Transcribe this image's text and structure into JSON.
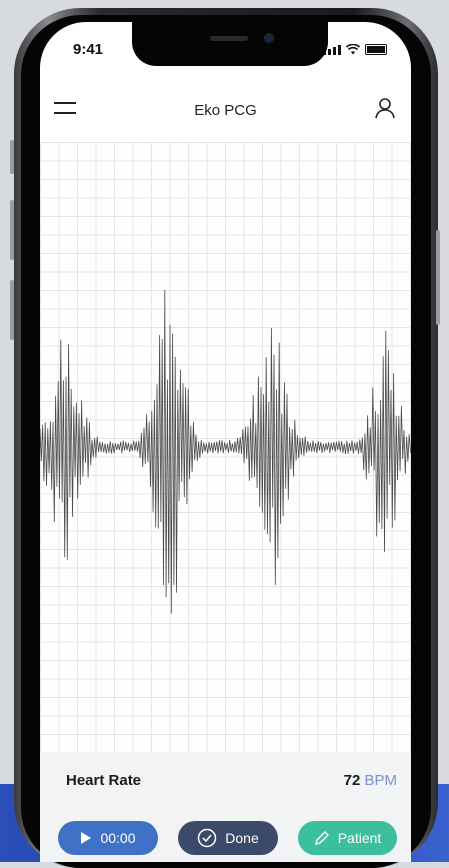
{
  "status_bar": {
    "time": "9:41"
  },
  "header": {
    "title": "Eko PCG"
  },
  "heart_rate": {
    "label": "Heart Rate",
    "value": "72",
    "unit": "BPM"
  },
  "buttons": {
    "play_label": "00:00",
    "done_label": "Done",
    "patient_label": "Patient"
  },
  "waveform": {
    "beat_peaks": [
      {
        "mid": 108,
        "up": 195,
        "down": 480
      },
      {
        "mid": 130,
        "up": 115,
        "down": 522
      },
      {
        "mid": 230,
        "up": 190,
        "down": 455
      },
      {
        "mid": 334,
        "up": 145,
        "down": 490
      }
    ]
  },
  "colors": {
    "play": "#3f72c6",
    "done": "#3c4a6a",
    "patient": "#3bbf9c",
    "bpm_unit": "#7b93c9",
    "waveform": "#4a4a4a"
  }
}
